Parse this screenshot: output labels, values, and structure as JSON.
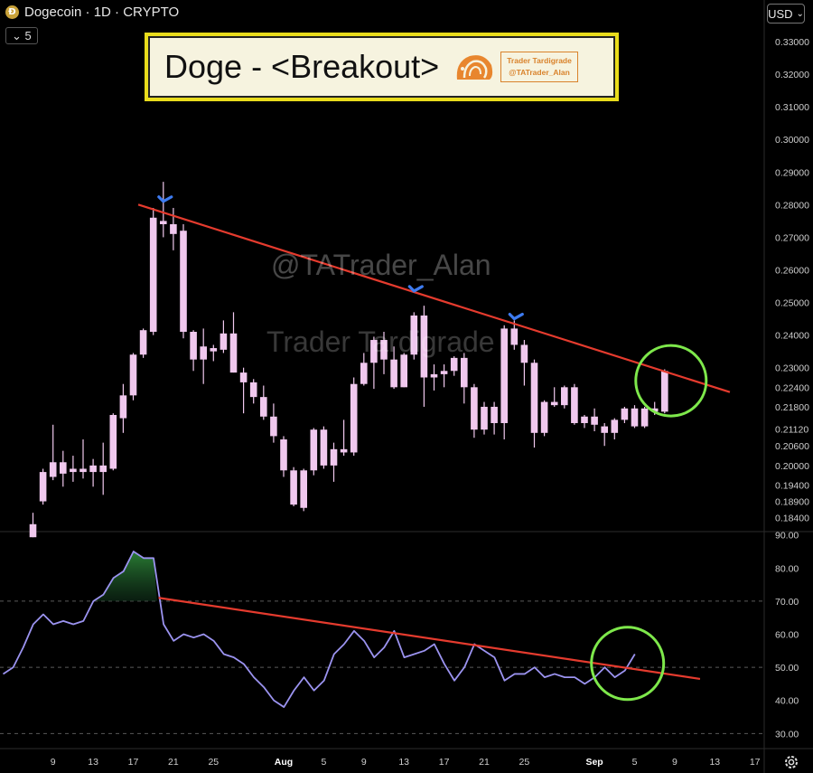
{
  "header": {
    "coin_icon": "dogecoin-icon",
    "symbol_line": "Dogecoin · 1D · CRYPTO",
    "indicator_count": "5",
    "chevron_icon": "chevron-down-icon"
  },
  "currency_button": {
    "label": "USD",
    "icon": "chevron-down-icon"
  },
  "annotation": {
    "title": "Doge - <Breakout>",
    "stamp_line1": "Trader Tardigrade",
    "stamp_line2": "@TATrader_Alan",
    "logo_icon": "tardigrade-logo"
  },
  "watermarks": {
    "line1": "@TATrader_Alan",
    "line2": "Trader Tardigrade"
  },
  "colors": {
    "candle": "#f0c8ee",
    "trendline": "#e53b2e",
    "circle": "#7ee84b",
    "arrow": "#3d7bf0",
    "rsi_line": "#9b93f0",
    "title_frame": "#e9dc1c"
  },
  "chart_data": [
    {
      "type": "candlestick",
      "title": "Dogecoin · 1D · CRYPTO",
      "currency": "USD",
      "x_ticks": [
        "9",
        "13",
        "17",
        "21",
        "25",
        "Aug",
        "5",
        "9",
        "13",
        "17",
        "21",
        "25",
        "Sep",
        "5",
        "9",
        "13",
        "17"
      ],
      "price_ticks": [
        "0.33000",
        "0.32000",
        "0.31000",
        "0.30000",
        "0.29000",
        "0.28000",
        "0.27000",
        "0.26000",
        "0.25000",
        "0.24000",
        "0.23000",
        "0.22400",
        "0.21800",
        "0.21120",
        "0.20600",
        "0.20000",
        "0.19400",
        "0.18900",
        "0.18400"
      ],
      "ylim": [
        0.18,
        0.335
      ],
      "start_date": "2023-07-07",
      "candles": [
        {
          "o": 0.182,
          "h": 0.1855,
          "c": 0.178,
          "l": 0.178
        },
        {
          "o": 0.189,
          "h": 0.199,
          "c": 0.198,
          "l": 0.188
        },
        {
          "o": 0.1965,
          "h": 0.2125,
          "c": 0.201,
          "l": 0.1955
        },
        {
          "o": 0.201,
          "h": 0.2045,
          "c": 0.1975,
          "l": 0.1935
        },
        {
          "o": 0.198,
          "h": 0.203,
          "c": 0.199,
          "l": 0.195
        },
        {
          "o": 0.199,
          "h": 0.208,
          "c": 0.198,
          "l": 0.196
        },
        {
          "o": 0.198,
          "h": 0.202,
          "c": 0.2,
          "l": 0.1935
        },
        {
          "o": 0.2,
          "h": 0.207,
          "c": 0.198,
          "l": 0.191
        },
        {
          "o": 0.199,
          "h": 0.216,
          "c": 0.2155,
          "l": 0.1985
        },
        {
          "o": 0.2145,
          "h": 0.225,
          "c": 0.2215,
          "l": 0.21
        },
        {
          "o": 0.2215,
          "h": 0.2345,
          "c": 0.234,
          "l": 0.22
        },
        {
          "o": 0.234,
          "h": 0.242,
          "c": 0.2415,
          "l": 0.233
        },
        {
          "o": 0.241,
          "h": 0.279,
          "c": 0.276,
          "l": 0.24
        },
        {
          "o": 0.275,
          "h": 0.287,
          "c": 0.274,
          "l": 0.27
        },
        {
          "o": 0.274,
          "h": 0.279,
          "c": 0.271,
          "l": 0.266
        },
        {
          "o": 0.272,
          "h": 0.274,
          "c": 0.241,
          "l": 0.239
        },
        {
          "o": 0.241,
          "h": 0.2415,
          "c": 0.2325,
          "l": 0.229
        },
        {
          "o": 0.2325,
          "h": 0.242,
          "c": 0.2365,
          "l": 0.225
        },
        {
          "o": 0.236,
          "h": 0.237,
          "c": 0.235,
          "l": 0.232
        },
        {
          "o": 0.2355,
          "h": 0.2445,
          "c": 0.2405,
          "l": 0.2345
        },
        {
          "o": 0.2405,
          "h": 0.247,
          "c": 0.2285,
          "l": 0.2285
        },
        {
          "o": 0.2285,
          "h": 0.23,
          "c": 0.2255,
          "l": 0.216
        },
        {
          "o": 0.2255,
          "h": 0.2265,
          "c": 0.221,
          "l": 0.219
        },
        {
          "o": 0.221,
          "h": 0.2245,
          "c": 0.215,
          "l": 0.214
        },
        {
          "o": 0.215,
          "h": 0.219,
          "c": 0.209,
          "l": 0.207
        },
        {
          "o": 0.208,
          "h": 0.209,
          "c": 0.1985,
          "l": 0.1965
        },
        {
          "o": 0.1985,
          "h": 0.1995,
          "c": 0.188,
          "l": 0.1875
        },
        {
          "o": 0.187,
          "h": 0.199,
          "c": 0.1985,
          "l": 0.186
        },
        {
          "o": 0.1985,
          "h": 0.2115,
          "c": 0.211,
          "l": 0.197
        },
        {
          "o": 0.211,
          "h": 0.212,
          "c": 0.2,
          "l": 0.199
        },
        {
          "o": 0.2,
          "h": 0.207,
          "c": 0.205,
          "l": 0.195
        },
        {
          "o": 0.205,
          "h": 0.214,
          "c": 0.204,
          "l": 0.203
        },
        {
          "o": 0.204,
          "h": 0.227,
          "c": 0.225,
          "l": 0.203
        },
        {
          "o": 0.225,
          "h": 0.2345,
          "c": 0.2315,
          "l": 0.2245
        },
        {
          "o": 0.2315,
          "h": 0.2395,
          "c": 0.2385,
          "l": 0.2235
        },
        {
          "o": 0.2385,
          "h": 0.241,
          "c": 0.2325,
          "l": 0.228
        },
        {
          "o": 0.2325,
          "h": 0.2365,
          "c": 0.224,
          "l": 0.2235
        },
        {
          "o": 0.224,
          "h": 0.2345,
          "c": 0.234,
          "l": 0.224
        },
        {
          "o": 0.234,
          "h": 0.247,
          "c": 0.246,
          "l": 0.2325
        },
        {
          "o": 0.246,
          "h": 0.249,
          "c": 0.227,
          "l": 0.218
        },
        {
          "o": 0.227,
          "h": 0.231,
          "c": 0.228,
          "l": 0.223
        },
        {
          "o": 0.228,
          "h": 0.231,
          "c": 0.229,
          "l": 0.224
        },
        {
          "o": 0.229,
          "h": 0.2335,
          "c": 0.233,
          "l": 0.2275
        },
        {
          "o": 0.233,
          "h": 0.2345,
          "c": 0.224,
          "l": 0.219
        },
        {
          "o": 0.224,
          "h": 0.225,
          "c": 0.211,
          "l": 0.2085
        },
        {
          "o": 0.211,
          "h": 0.2195,
          "c": 0.218,
          "l": 0.2095
        },
        {
          "o": 0.218,
          "h": 0.2195,
          "c": 0.213,
          "l": 0.2095
        },
        {
          "o": 0.213,
          "h": 0.243,
          "c": 0.242,
          "l": 0.208
        },
        {
          "o": 0.242,
          "h": 0.2445,
          "c": 0.237,
          "l": 0.2355
        },
        {
          "o": 0.237,
          "h": 0.2385,
          "c": 0.2315,
          "l": 0.2245
        },
        {
          "o": 0.2315,
          "h": 0.2325,
          "c": 0.21,
          "l": 0.2055
        },
        {
          "o": 0.21,
          "h": 0.22,
          "c": 0.2195,
          "l": 0.209
        },
        {
          "o": 0.2195,
          "h": 0.224,
          "c": 0.2185,
          "l": 0.218
        },
        {
          "o": 0.2185,
          "h": 0.2245,
          "c": 0.224,
          "l": 0.2175
        },
        {
          "o": 0.224,
          "h": 0.225,
          "c": 0.213,
          "l": 0.2125
        },
        {
          "o": 0.213,
          "h": 0.2155,
          "c": 0.215,
          "l": 0.2115
        },
        {
          "o": 0.215,
          "h": 0.2175,
          "c": 0.2125,
          "l": 0.2105
        },
        {
          "o": 0.212,
          "h": 0.213,
          "c": 0.21,
          "l": 0.206
        },
        {
          "o": 0.21,
          "h": 0.2145,
          "c": 0.214,
          "l": 0.208
        },
        {
          "o": 0.214,
          "h": 0.218,
          "c": 0.2175,
          "l": 0.213
        },
        {
          "o": 0.2175,
          "h": 0.2185,
          "c": 0.212,
          "l": 0.2115
        },
        {
          "o": 0.212,
          "h": 0.218,
          "c": 0.2175,
          "l": 0.2115
        },
        {
          "o": 0.2175,
          "h": 0.2195,
          "c": 0.2165,
          "l": 0.2155
        },
        {
          "o": 0.2165,
          "h": 0.2295,
          "c": 0.229,
          "l": 0.216
        }
      ],
      "trendline": {
        "start": {
          "index": 10.5,
          "value": 0.28
        },
        "end": {
          "index": 69.5,
          "value": 0.2225
        }
      },
      "arrow_markers": [
        {
          "index": 13,
          "value": 0.281
        },
        {
          "index": 38,
          "value": 0.2535
        },
        {
          "index": 48,
          "value": 0.245
        }
      ],
      "highlight_circle": {
        "index": 63,
        "value": 0.226
      }
    },
    {
      "type": "line",
      "title": "",
      "y_ticks": [
        "90.00",
        "80.00",
        "70.00",
        "60.00",
        "50.00",
        "40.00",
        "30.00"
      ],
      "ylim": [
        26,
        91
      ],
      "reference_lines": [
        70,
        50,
        30
      ],
      "values": [
        48,
        50,
        56,
        63,
        66,
        63,
        64,
        63,
        64,
        70,
        72,
        77,
        79,
        85,
        83,
        83,
        63,
        58,
        60,
        59,
        60,
        58,
        54,
        53,
        51,
        47,
        44,
        40,
        38,
        43,
        47,
        43,
        46,
        54,
        57,
        61,
        58,
        53,
        56,
        61,
        53,
        54,
        55,
        57,
        51,
        46,
        50,
        57,
        55,
        53,
        46,
        48,
        48,
        50,
        47,
        48,
        47,
        47,
        45,
        47,
        50,
        47,
        49,
        54
      ],
      "overbought_fill_threshold": 70,
      "trendline": {
        "start": {
          "index": 15.5,
          "value": 71.0
        },
        "end": {
          "index": 69.5,
          "value": 46.5
        }
      },
      "highlight_circle": {
        "index": 62,
        "value": 49
      }
    }
  ],
  "settings_icon": "gear-icon"
}
